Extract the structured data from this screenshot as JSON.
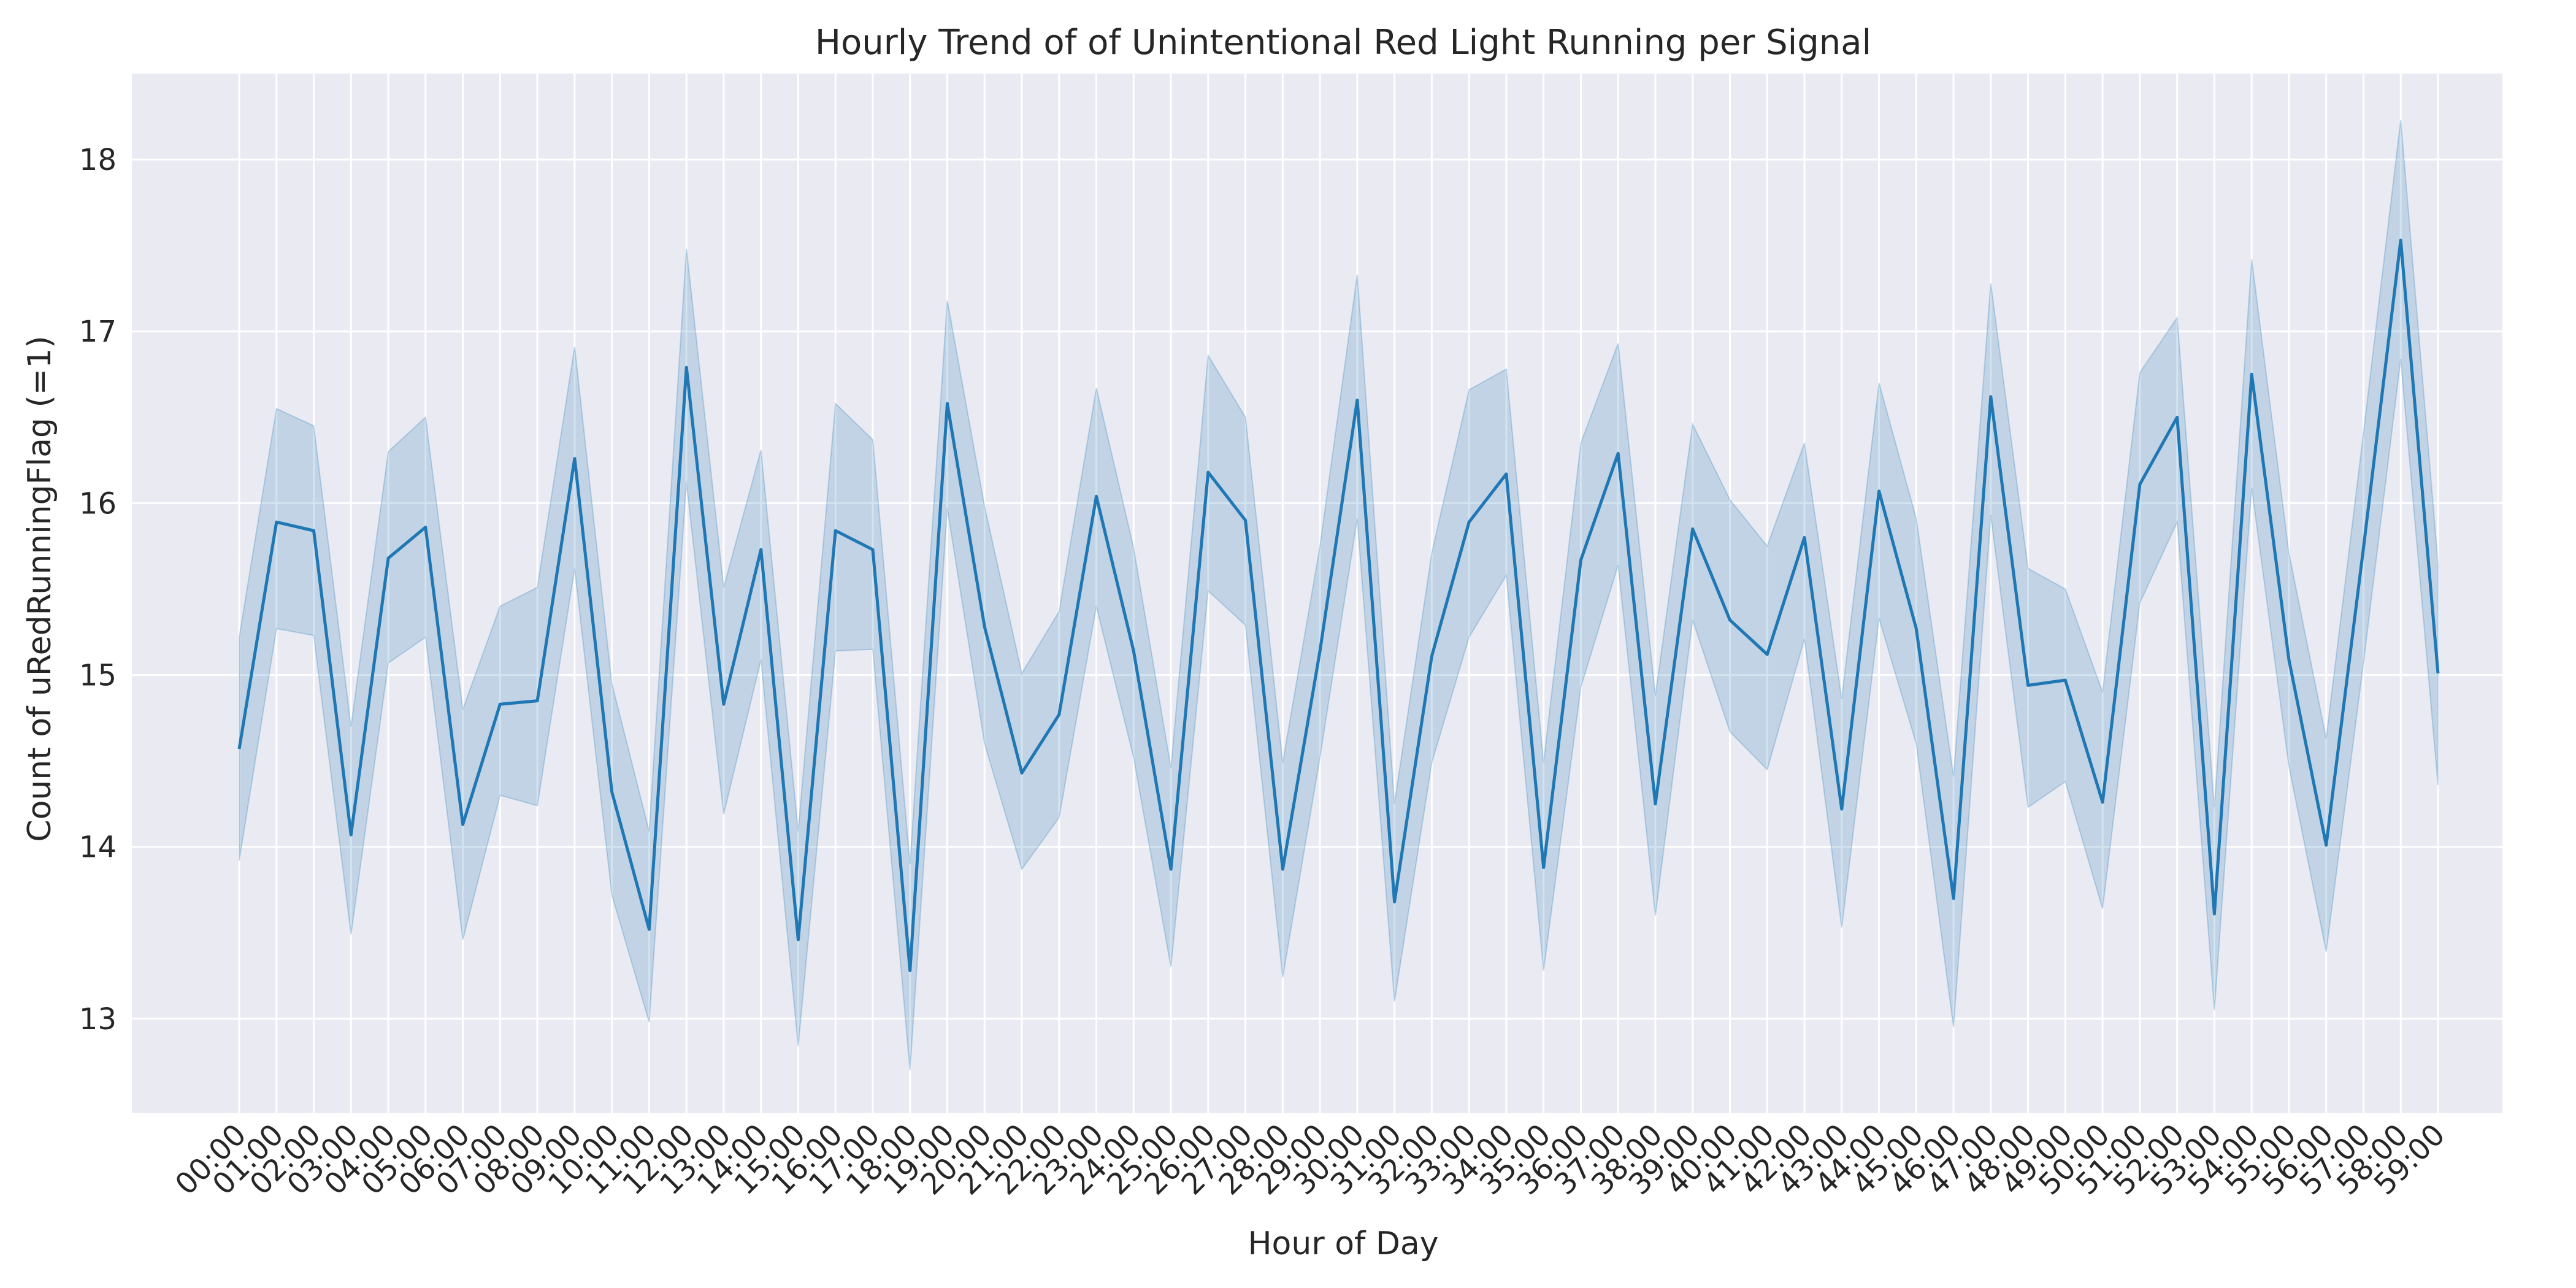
{
  "chart_data": {
    "type": "line",
    "title": "Hourly Trend of of Unintentional Red Light Running per Signal",
    "xlabel": "Hour of Day",
    "ylabel": "Count of uRedRunningFlag (=1)",
    "ylim": [
      12.45,
      18.5
    ],
    "yticks": [
      13,
      14,
      15,
      16,
      17,
      18
    ],
    "grid": true,
    "categories": [
      "00:00",
      "01:00",
      "02:00",
      "03:00",
      "04:00",
      "05:00",
      "06:00",
      "07:00",
      "08:00",
      "09:00",
      "10:00",
      "11:00",
      "12:00",
      "13:00",
      "14:00",
      "15:00",
      "16:00",
      "17:00",
      "18:00",
      "19:00",
      "20:00",
      "21:00",
      "22:00",
      "23:00",
      "24:00",
      "25:00",
      "26:00",
      "27:00",
      "28:00",
      "29:00",
      "30:00",
      "31:00",
      "32:00",
      "33:00",
      "34:00",
      "35:00",
      "36:00",
      "37:00",
      "38:00",
      "39:00",
      "40:00",
      "41:00",
      "42:00",
      "43:00",
      "44:00",
      "45:00",
      "46:00",
      "47:00",
      "48:00",
      "49:00",
      "50:00",
      "51:00",
      "52:00",
      "53:00",
      "54:00",
      "55:00",
      "56:00",
      "57:00",
      "58:00",
      "59:00"
    ],
    "series": [
      {
        "values": [
          14.57,
          15.89,
          15.84,
          14.07,
          15.68,
          15.86,
          14.13,
          14.83,
          14.85,
          16.26,
          14.32,
          13.52,
          16.79,
          14.83,
          15.73,
          13.46,
          15.84,
          15.73,
          13.28,
          16.58,
          15.28,
          14.43,
          14.77,
          16.04,
          15.14,
          13.87,
          16.18,
          15.9,
          13.87,
          15.14,
          16.6,
          13.68,
          15.11,
          15.89,
          16.17,
          13.88,
          15.67,
          16.29,
          14.25,
          15.85,
          15.32,
          15.12,
          15.8,
          14.22,
          16.07,
          15.27,
          13.7,
          16.62,
          14.94,
          14.97,
          14.26,
          16.11,
          16.5,
          13.61,
          16.75,
          15.09,
          14.01,
          15.74,
          17.53,
          15.01
        ],
        "lower": [
          13.92,
          15.27,
          15.23,
          13.49,
          15.07,
          15.22,
          13.46,
          14.3,
          14.24,
          15.62,
          13.72,
          12.98,
          16.12,
          14.19,
          15.09,
          12.84,
          15.14,
          15.15,
          12.7,
          15.97,
          14.6,
          13.87,
          14.17,
          15.4,
          14.52,
          13.3,
          15.49,
          15.29,
          13.24,
          14.52,
          15.91,
          13.1,
          14.49,
          15.22,
          15.58,
          13.28,
          14.93,
          15.64,
          13.6,
          15.32,
          14.67,
          14.45,
          15.21,
          13.53,
          15.33,
          14.6,
          12.95,
          15.93,
          14.23,
          14.38,
          13.64,
          15.42,
          15.89,
          13.05,
          16.09,
          14.47,
          13.39,
          15.07,
          16.84,
          14.36
        ],
        "upper": [
          15.22,
          16.55,
          16.45,
          14.7,
          16.3,
          16.5,
          14.8,
          15.4,
          15.51,
          16.91,
          14.95,
          14.09,
          17.48,
          15.51,
          16.31,
          14.09,
          16.58,
          16.37,
          13.9,
          17.18,
          15.98,
          15.01,
          15.37,
          16.67,
          15.74,
          14.46,
          16.86,
          16.5,
          14.49,
          15.75,
          17.33,
          14.25,
          15.71,
          16.66,
          16.78,
          14.49,
          16.35,
          16.93,
          14.88,
          16.46,
          16.02,
          15.75,
          16.35,
          14.86,
          16.7,
          15.91,
          14.41,
          17.28,
          15.62,
          15.5,
          14.9,
          16.76,
          17.08,
          14.23,
          17.42,
          15.71,
          14.63,
          16.41,
          18.23,
          15.65
        ]
      }
    ],
    "colors": {
      "line": "#1f77b4",
      "band": "#1f77b4",
      "plot_bg": "#eaeaf2",
      "grid": "#ffffff"
    }
  }
}
